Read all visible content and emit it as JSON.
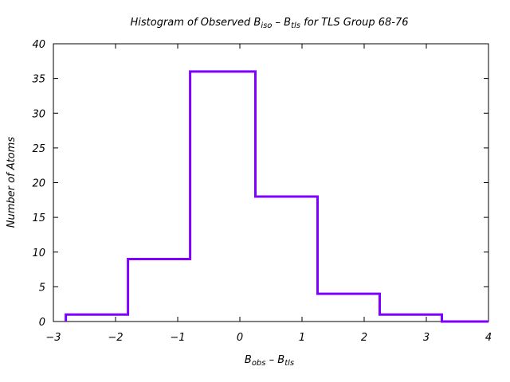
{
  "chart_data": {
    "type": "bar",
    "title": {
      "pre": "Histogram of Observed B",
      "sub1": "iso",
      "mid": " – B",
      "sub2": "tls",
      "post": " for TLS Group 68-76"
    },
    "xlabel": {
      "main1": "B",
      "sub1": "obs",
      "mid": " – B",
      "sub2": "tls"
    },
    "ylabel": "Number of Atoms",
    "xlim": [
      -3,
      4
    ],
    "ylim": [
      0,
      40
    ],
    "x_ticks": [
      "−3",
      "−2",
      "−1",
      "0",
      "1",
      "2",
      "3",
      "4"
    ],
    "y_ticks": [
      "0",
      "5",
      "10",
      "15",
      "20",
      "25",
      "30",
      "35",
      "40"
    ],
    "bin_edges": [
      -2.8,
      -1.8,
      -0.8,
      0.25,
      1.25,
      2.25,
      3.25,
      4.0
    ],
    "values": [
      1,
      9,
      36,
      18,
      4,
      1,
      0
    ],
    "line_color": "#7f00ff",
    "grid": false
  }
}
